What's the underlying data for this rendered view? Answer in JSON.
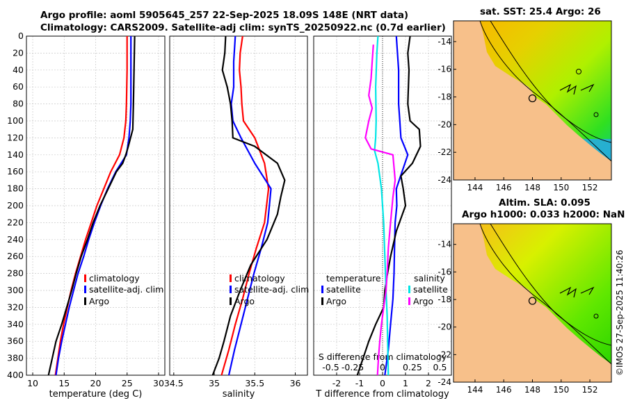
{
  "header": {
    "title_line1": "Argo profile: aoml 5905645_257 22-Sep-2025 18.09S 148E (NRT data)",
    "title_line2": "Climatology: CARS2009. Satellite-adj clim: synTS_20250922.nc (0.7d earlier)"
  },
  "colors": {
    "climatology": "#ff0000",
    "satellite": "#0000ff",
    "argo": "#000000",
    "sat_salinity": "#00e5e5",
    "argo_salinity": "#ff00ff",
    "land": "#f7c08a"
  },
  "chart_data": [
    {
      "type": "line",
      "id": "temperature",
      "xlabel": "temperature (deg C)",
      "ylabel": "",
      "xlim": [
        9,
        31
      ],
      "ylim": [
        400,
        0
      ],
      "xticks": [
        10,
        15,
        20,
        25,
        30
      ],
      "xtick_labels": [
        "10",
        "15",
        "20",
        "25",
        "30"
      ],
      "yticks": [
        0,
        20,
        40,
        60,
        80,
        100,
        120,
        140,
        160,
        180,
        200,
        220,
        240,
        260,
        280,
        300,
        320,
        340,
        360,
        380,
        400
      ],
      "ytick_labels": [
        "0",
        "20",
        "40",
        "60",
        "80",
        "100",
        "120",
        "140",
        "160",
        "180",
        "200",
        "220",
        "240",
        "260",
        "280",
        "300",
        "320",
        "340",
        "360",
        "380",
        "400"
      ],
      "legend": [
        "climatology",
        "satellite-adj. clim",
        "Argo"
      ],
      "series": [
        {
          "name": "climatology",
          "color": "#ff0000",
          "points": [
            [
              25.0,
              0
            ],
            [
              25.0,
              40
            ],
            [
              24.9,
              80
            ],
            [
              24.8,
              100
            ],
            [
              24.5,
              120
            ],
            [
              23.8,
              140
            ],
            [
              22.4,
              160
            ],
            [
              21.3,
              180
            ],
            [
              20.2,
              200
            ],
            [
              19.3,
              220
            ],
            [
              18.4,
              240
            ],
            [
              17.6,
              260
            ],
            [
              16.8,
              280
            ],
            [
              16.1,
              300
            ],
            [
              15.5,
              320
            ],
            [
              14.9,
              340
            ],
            [
              14.4,
              360
            ],
            [
              14.0,
              380
            ],
            [
              13.6,
              400
            ]
          ]
        },
        {
          "name": "satellite-adj. clim",
          "color": "#0000ff",
          "points": [
            [
              25.6,
              0
            ],
            [
              25.6,
              40
            ],
            [
              25.6,
              80
            ],
            [
              25.5,
              100
            ],
            [
              25.3,
              120
            ],
            [
              24.9,
              140
            ],
            [
              23.2,
              160
            ],
            [
              21.9,
              180
            ],
            [
              20.8,
              200
            ],
            [
              19.8,
              220
            ],
            [
              18.9,
              240
            ],
            [
              18.1,
              260
            ],
            [
              17.2,
              280
            ],
            [
              16.5,
              300
            ],
            [
              15.8,
              320
            ],
            [
              15.2,
              340
            ],
            [
              14.6,
              360
            ],
            [
              14.1,
              380
            ],
            [
              13.7,
              400
            ]
          ]
        },
        {
          "name": "Argo",
          "color": "#000000",
          "points": [
            [
              26.2,
              0
            ],
            [
              26.1,
              40
            ],
            [
              26.0,
              80
            ],
            [
              25.9,
              110
            ],
            [
              25.2,
              130
            ],
            [
              24.8,
              140
            ],
            [
              24.3,
              150
            ],
            [
              23.3,
              160
            ],
            [
              22.0,
              180
            ],
            [
              20.7,
              200
            ],
            [
              19.6,
              220
            ],
            [
              18.7,
              240
            ],
            [
              17.7,
              260
            ],
            [
              16.9,
              280
            ],
            [
              16.2,
              300
            ],
            [
              15.4,
              320
            ],
            [
              14.6,
              340
            ],
            [
              13.7,
              360
            ],
            [
              13.1,
              380
            ],
            [
              12.5,
              400
            ]
          ]
        }
      ]
    },
    {
      "type": "line",
      "id": "salinity",
      "xlabel": "salinity",
      "xlim": [
        34.45,
        36.15
      ],
      "ylim": [
        400,
        0
      ],
      "xticks": [
        34.5,
        35,
        35.5,
        36
      ],
      "xtick_labels": [
        "34.5",
        "35",
        "35.5",
        "36"
      ],
      "legend": [
        "climatology",
        "satellite-adj. clim",
        "Argo"
      ],
      "series": [
        {
          "name": "climatology",
          "color": "#ff0000",
          "points": [
            [
              35.35,
              0
            ],
            [
              35.32,
              20
            ],
            [
              35.31,
              40
            ],
            [
              35.33,
              60
            ],
            [
              35.34,
              80
            ],
            [
              35.36,
              100
            ],
            [
              35.5,
              120
            ],
            [
              35.62,
              150
            ],
            [
              35.67,
              180
            ],
            [
              35.62,
              220
            ],
            [
              35.52,
              250
            ],
            [
              35.43,
              280
            ],
            [
              35.35,
              310
            ],
            [
              35.26,
              340
            ],
            [
              35.18,
              370
            ],
            [
              35.09,
              400
            ]
          ]
        },
        {
          "name": "satellite-adj. clim",
          "color": "#0000ff",
          "points": [
            [
              35.26,
              0
            ],
            [
              35.24,
              30
            ],
            [
              35.24,
              60
            ],
            [
              35.21,
              80
            ],
            [
              35.23,
              100
            ],
            [
              35.33,
              120
            ],
            [
              35.5,
              150
            ],
            [
              35.7,
              180
            ],
            [
              35.66,
              220
            ],
            [
              35.58,
              250
            ],
            [
              35.49,
              280
            ],
            [
              35.41,
              310
            ],
            [
              35.33,
              340
            ],
            [
              35.25,
              370
            ],
            [
              35.18,
              400
            ]
          ]
        },
        {
          "name": "Argo",
          "color": "#000000",
          "points": [
            [
              35.14,
              0
            ],
            [
              35.13,
              20
            ],
            [
              35.1,
              40
            ],
            [
              35.16,
              60
            ],
            [
              35.2,
              80
            ],
            [
              35.22,
              100
            ],
            [
              35.23,
              120
            ],
            [
              35.5,
              130
            ],
            [
              35.78,
              150
            ],
            [
              35.87,
              170
            ],
            [
              35.82,
              190
            ],
            [
              35.78,
              210
            ],
            [
              35.65,
              240
            ],
            [
              35.45,
              270
            ],
            [
              35.32,
              300
            ],
            [
              35.2,
              330
            ],
            [
              35.12,
              360
            ],
            [
              35.06,
              380
            ],
            [
              34.98,
              400
            ]
          ]
        }
      ]
    },
    {
      "type": "line",
      "id": "difference",
      "xlabel": "T difference from climatology",
      "xlabel_top": "S difference from climatology",
      "xlim": [
        -3,
        3
      ],
      "ylim": [
        400,
        0
      ],
      "xticks": [
        -2,
        -1,
        0,
        1,
        2
      ],
      "xtick_labels": [
        "-2",
        "-1",
        "0",
        "1",
        "2"
      ],
      "xticks_top_labels": [
        "-0.5",
        "-0.25",
        "0",
        "0.25",
        "0.5"
      ],
      "legend_temperature_title": "temperature",
      "legend_temperature": [
        "satellite",
        "Argo"
      ],
      "legend_salinity_title": "salinity",
      "legend_salinity": [
        "satellite",
        "Argo"
      ],
      "series": [
        {
          "name": "T satellite",
          "color": "#0000ff",
          "points": [
            [
              0.6,
              0
            ],
            [
              0.7,
              40
            ],
            [
              0.7,
              80
            ],
            [
              0.75,
              100
            ],
            [
              0.8,
              120
            ],
            [
              1.1,
              140
            ],
            [
              0.85,
              160
            ],
            [
              0.6,
              180
            ],
            [
              0.62,
              200
            ],
            [
              0.55,
              220
            ],
            [
              0.52,
              250
            ],
            [
              0.5,
              280
            ],
            [
              0.45,
              310
            ],
            [
              0.35,
              340
            ],
            [
              0.25,
              370
            ],
            [
              0.1,
              400
            ]
          ]
        },
        {
          "name": "T Argo",
          "color": "#000000",
          "points": [
            [
              1.2,
              0
            ],
            [
              1.1,
              20
            ],
            [
              1.15,
              40
            ],
            [
              1.1,
              80
            ],
            [
              1.2,
              100
            ],
            [
              1.6,
              110
            ],
            [
              1.65,
              130
            ],
            [
              1.3,
              150
            ],
            [
              0.8,
              165
            ],
            [
              0.9,
              180
            ],
            [
              1.0,
              200
            ],
            [
              0.6,
              230
            ],
            [
              0.35,
              260
            ],
            [
              0.15,
              290
            ],
            [
              0.1,
              300
            ],
            [
              0.05,
              320
            ],
            [
              -0.3,
              340
            ],
            [
              -0.6,
              360
            ],
            [
              -0.85,
              380
            ],
            [
              -1.1,
              400
            ]
          ]
        },
        {
          "name": "S satellite",
          "color": "#00e5e5",
          "points": [
            [
              -0.2,
              0
            ],
            [
              -0.25,
              20
            ],
            [
              -0.3,
              60
            ],
            [
              -0.28,
              100
            ],
            [
              -0.3,
              120
            ],
            [
              -0.35,
              135
            ],
            [
              -0.2,
              150
            ],
            [
              -0.05,
              180
            ],
            [
              0.05,
              220
            ],
            [
              0.1,
              260
            ],
            [
              0.15,
              300
            ],
            [
              0.2,
              330
            ],
            [
              0.22,
              360
            ],
            [
              0.25,
              400
            ]
          ]
        },
        {
          "name": "S Argo",
          "color": "#ff00ff",
          "points": [
            [
              -0.4,
              10
            ],
            [
              -0.45,
              30
            ],
            [
              -0.5,
              50
            ],
            [
              -0.6,
              70
            ],
            [
              -0.45,
              85
            ],
            [
              -0.6,
              100
            ],
            [
              -0.75,
              120
            ],
            [
              -0.5,
              133
            ],
            [
              0.45,
              140
            ],
            [
              0.55,
              170
            ],
            [
              0.45,
              190
            ],
            [
              0.35,
              220
            ],
            [
              0.25,
              250
            ],
            [
              0.2,
              280
            ],
            [
              0.15,
              300
            ],
            [
              0.05,
              320
            ],
            [
              -0.05,
              340
            ],
            [
              -0.12,
              360
            ],
            [
              -0.18,
              380
            ],
            [
              -0.22,
              400
            ]
          ]
        }
      ]
    },
    {
      "type": "heatmap",
      "id": "map-sst",
      "title": "sat. SST: 25.4 Argo: 26",
      "xticks": [
        144,
        146,
        148,
        150,
        152
      ],
      "xtick_labels": [
        "144",
        "146",
        "148",
        "150",
        "152"
      ],
      "yticks": [
        -14,
        -16,
        -18,
        -20,
        -22,
        -24
      ],
      "ytick_labels": [
        "-14",
        "-16",
        "-18",
        "-20",
        "-22",
        "-24"
      ],
      "xlim": [
        142.5,
        153.5
      ],
      "ylim": [
        -24,
        -12.5
      ],
      "float_position": [
        148,
        -18.1
      ]
    },
    {
      "type": "heatmap",
      "id": "map-sla",
      "title_line1": "Altim. SLA: 0.095",
      "title_line2": "Argo h1000: 0.033 h2000: NaN",
      "xticks": [
        144,
        146,
        148,
        150,
        152
      ],
      "xtick_labels": [
        "144",
        "146",
        "148",
        "150",
        "152"
      ],
      "yticks": [
        -14,
        -16,
        -18,
        -20,
        -22,
        -24
      ],
      "ytick_labels": [
        "-14",
        "-16",
        "-18",
        "-20",
        "-22",
        "-24"
      ],
      "xlim": [
        142.5,
        153.5
      ],
      "ylim": [
        -24,
        -12.5
      ],
      "float_position": [
        148,
        -18.1
      ]
    }
  ],
  "footer": {
    "stamp": "©IMOS 27-Sep-2025 11:40:26"
  }
}
